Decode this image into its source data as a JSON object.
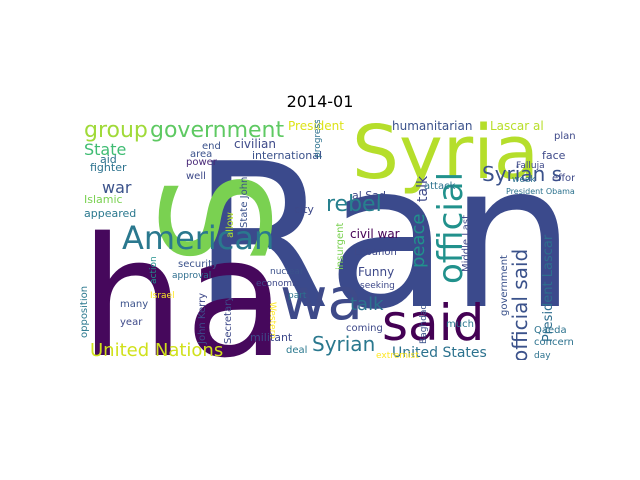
{
  "title": "2014-01",
  "wordcloud": {
    "palette": "viridis",
    "words": [
      {
        "text": "Ran",
        "color": "#3b4a8c"
      },
      {
        "text": "ha",
        "color": "#46085c"
      },
      {
        "text": "S",
        "color": "#7ad151"
      },
      {
        "text": "Syria",
        "color": "#b5de2b"
      },
      {
        "text": "wa",
        "color": "#3e4a89"
      },
      {
        "text": "said",
        "color": "#440154"
      },
      {
        "text": "American",
        "color": "#2a788e"
      },
      {
        "text": "official",
        "color": "#21918c"
      },
      {
        "text": "group",
        "color": "#a0da39"
      },
      {
        "text": "government",
        "color": "#5ec962"
      },
      {
        "text": "rebel",
        "color": "#27808e"
      },
      {
        "text": "State",
        "color": "#3fbc73"
      },
      {
        "text": "Syrian s",
        "color": "#3b528b"
      },
      {
        "text": "official said",
        "color": "#3b528b"
      },
      {
        "text": "United Nations",
        "color": "#d0e11c"
      },
      {
        "text": "Syrian",
        "color": "#2a788e"
      },
      {
        "text": "talk",
        "color": "#2c728e"
      },
      {
        "text": "war",
        "color": "#3b528b"
      },
      {
        "text": "peace",
        "color": "#21918c"
      },
      {
        "text": "talk",
        "color": "#3e4989"
      },
      {
        "text": "United States",
        "color": "#2c728e"
      },
      {
        "text": "President Lascar",
        "color": "#2e6e8e"
      },
      {
        "text": "President",
        "color": "#dde318"
      },
      {
        "text": "humanitarian",
        "color": "#3b528b"
      },
      {
        "text": "Lascar al",
        "color": "#b8de29"
      },
      {
        "text": "civilian",
        "color": "#3e4a89"
      },
      {
        "text": "international",
        "color": "#3b528b"
      },
      {
        "text": "fighter",
        "color": "#2c728e"
      },
      {
        "text": "aid",
        "color": "#2c728e"
      },
      {
        "text": "end",
        "color": "#3b528b"
      },
      {
        "text": "area",
        "color": "#3b528b"
      },
      {
        "text": "power",
        "color": "#482878"
      },
      {
        "text": "well",
        "color": "#3e4a89"
      },
      {
        "text": "Islamic",
        "color": "#7ad151"
      },
      {
        "text": "appeared",
        "color": "#2a788e"
      },
      {
        "text": "State John",
        "color": "#3b528b"
      },
      {
        "text": "John Kerry",
        "color": "#3e4989"
      },
      {
        "text": "security",
        "color": "#3b528b"
      },
      {
        "text": "approval",
        "color": "#2e6e8e"
      },
      {
        "text": "action",
        "color": "#21918c"
      },
      {
        "text": "Israel",
        "color": "#fde725"
      },
      {
        "text": "many",
        "color": "#3b528b"
      },
      {
        "text": "year",
        "color": "#3e4989"
      },
      {
        "text": "opposition",
        "color": "#2a788e"
      },
      {
        "text": "Secretary",
        "color": "#3e4989"
      },
      {
        "text": "allow",
        "color": "#b5de2b"
      },
      {
        "text": "nuclear",
        "color": "#3b528b"
      },
      {
        "text": "economic",
        "color": "#3e4989"
      },
      {
        "text": "Western",
        "color": "#fde725"
      },
      {
        "text": "part",
        "color": "#2c728e"
      },
      {
        "text": "militant",
        "color": "#3e4989"
      },
      {
        "text": "deal",
        "color": "#2a788e"
      },
      {
        "text": "coming",
        "color": "#3e4989"
      },
      {
        "text": "city",
        "color": "#3e4989"
      },
      {
        "text": "al Sad",
        "color": "#3e4989"
      },
      {
        "text": "civil war",
        "color": "#440154"
      },
      {
        "text": "Lebanon",
        "color": "#3e4989"
      },
      {
        "text": "Funny",
        "color": "#3e4989"
      },
      {
        "text": "attack",
        "color": "#2c728e"
      },
      {
        "text": "seeking",
        "color": "#3e4989"
      },
      {
        "text": "insurgent",
        "color": "#7ad151"
      },
      {
        "text": "Middle Last",
        "color": "#3e4989"
      },
      {
        "text": "government",
        "color": "#3b528b"
      },
      {
        "text": "Qaeda",
        "color": "#2c728e"
      },
      {
        "text": "concern",
        "color": "#2c728e"
      },
      {
        "text": "face",
        "color": "#3e4989"
      },
      {
        "text": "day",
        "color": "#2c728e"
      },
      {
        "text": "much",
        "color": "#2a788e"
      },
      {
        "text": "Baghdad",
        "color": "#3b528b"
      },
      {
        "text": "extremist",
        "color": "#fde725"
      },
      {
        "text": "progress",
        "color": "#2c728e"
      },
      {
        "text": "Falluja",
        "color": "#3e4989"
      },
      {
        "text": "week",
        "color": "#2c728e"
      },
      {
        "text": "effort",
        "color": "#3e4989"
      },
      {
        "text": "plan",
        "color": "#3e4989"
      },
      {
        "text": "President Obama",
        "color": "#2c728e"
      }
    ]
  }
}
